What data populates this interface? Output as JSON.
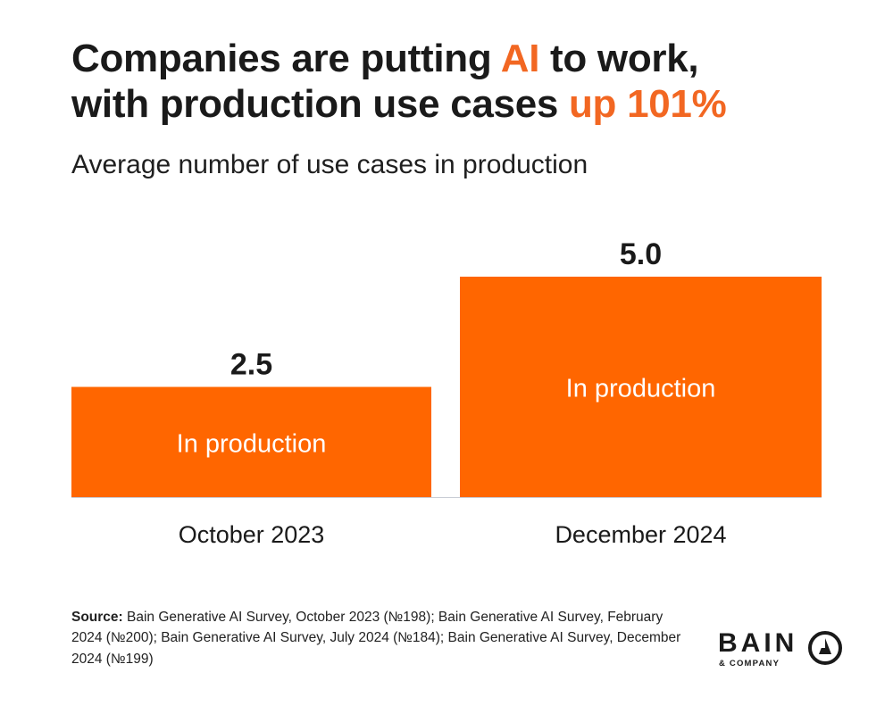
{
  "headline": {
    "line1_a": "Companies are putting ",
    "line1_accent": "AI",
    "line1_b": " to work,",
    "line2_a": "with production use cases ",
    "line2_accent": "up 101%"
  },
  "chart_data": {
    "type": "bar",
    "title": "Average number of use cases in production",
    "categories": [
      "October 2023",
      "December 2024"
    ],
    "series": [
      {
        "name": "In production",
        "values": [
          2.5,
          5.0
        ]
      }
    ],
    "value_labels": [
      "2.5",
      "5.0"
    ],
    "bar_inner_label": "In production",
    "ylim": [
      0,
      5.0
    ],
    "grid": false,
    "colors": {
      "bar": "#ff6600",
      "baseline": "#c8ccd4",
      "text": "#1a1a1a",
      "accent": "#f26722"
    }
  },
  "footer": {
    "source_label": "Source:",
    "source_text": " Bain Generative AI Survey, October 2023 (№198); Bain Generative AI Survey, February 2024 (№200); Bain Generative AI Survey, July 2024 (№184); Bain Generative AI Survey, December 2024 (№199)"
  },
  "logo": {
    "word": "BAIN",
    "sub": "& COMPANY",
    "icon": "bain-compass-icon"
  }
}
